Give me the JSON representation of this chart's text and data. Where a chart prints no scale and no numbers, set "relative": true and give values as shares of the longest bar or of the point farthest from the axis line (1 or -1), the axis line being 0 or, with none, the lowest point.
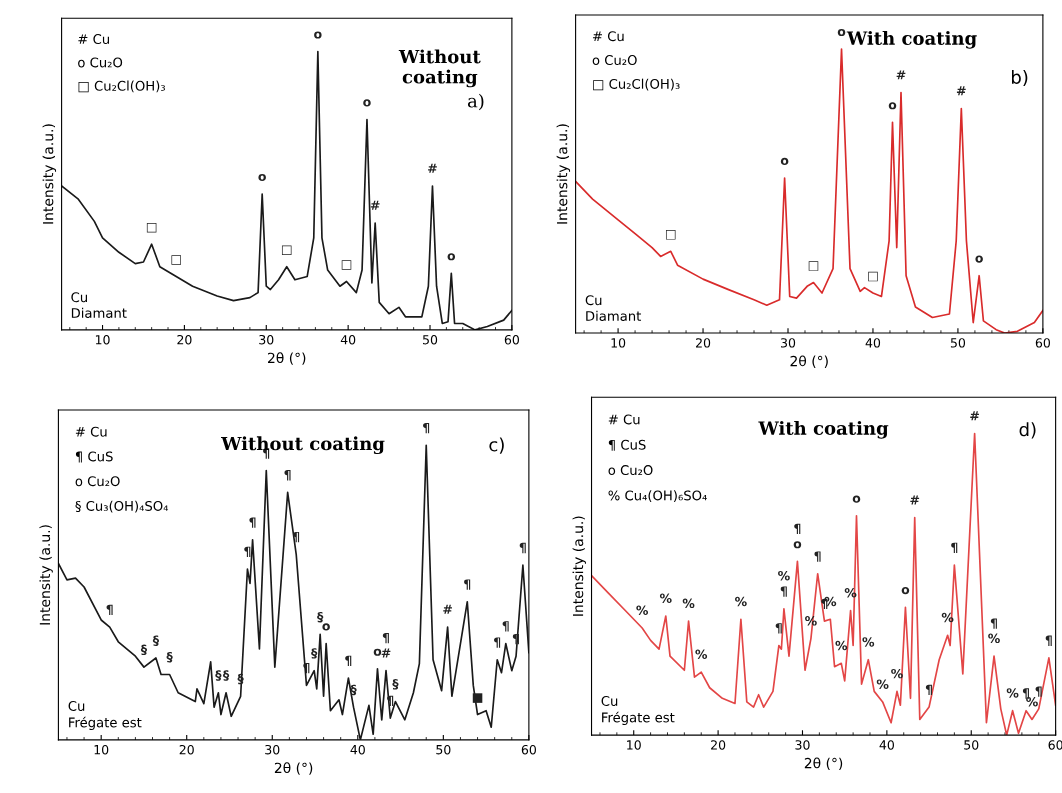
{
  "chart_data": [
    {
      "type": "line",
      "title": "Without\ncoating",
      "xlabel": "2θ (°)",
      "ylabel": "Intensity (a.u.)",
      "relative": true,
      "xlim": [
        5,
        60
      ],
      "xticks": [
        10,
        20,
        30,
        40,
        50,
        60
      ],
      "grid": false,
      "marker": "none",
      "line_style": "solid",
      "series": [
        {
          "color": "#1a1a1a",
          "x": [
            5,
            7,
            9,
            10,
            12,
            14,
            15,
            16,
            17,
            19,
            21,
            22,
            24,
            26,
            28,
            29,
            29.5,
            30,
            30.5,
            31.5,
            32.5,
            33.5,
            35,
            35.8,
            36.3,
            36.8,
            37.5,
            39,
            39.8,
            41,
            41.7,
            42.3,
            42.9,
            43.3,
            43.8,
            45,
            46.2,
            47,
            49,
            49.8,
            50.3,
            50.8,
            51.5,
            52.2,
            52.6,
            53,
            54,
            55.5,
            57,
            59,
            60
          ],
          "values": [
            0.517,
            0.471,
            0.39,
            0.331,
            0.279,
            0.238,
            0.244,
            0.308,
            0.227,
            0.192,
            0.157,
            0.145,
            0.122,
            0.105,
            0.116,
            0.134,
            0.488,
            0.157,
            0.145,
            0.18,
            0.227,
            0.18,
            0.192,
            0.331,
            1.0,
            0.331,
            0.215,
            0.157,
            0.174,
            0.134,
            0.215,
            0.756,
            0.169,
            0.384,
            0.099,
            0.058,
            0.081,
            0.047,
            0.047,
            0.157,
            0.517,
            0.157,
            0.023,
            0.029,
            0.203,
            0.023,
            0.023,
            0,
            0.012,
            0.035,
            0.07
          ]
        }
      ],
      "annotations": [
        "# Cu",
        "o Cu₂O",
        "□ Cu₂Cl(OH)₃",
        "Cu\nDiamant",
        "a)",
        {
          "text": "□",
          "x": 16,
          "y": 0.308
        },
        {
          "text": "□",
          "x": 19,
          "y": 0.192
        },
        {
          "text": "o",
          "x": 29.5,
          "y": 0.488
        },
        {
          "text": "□",
          "x": 32.5,
          "y": 0.227
        },
        {
          "text": "o",
          "x": 36.3,
          "y": 1.0
        },
        {
          "text": "□",
          "x": 39.8,
          "y": 0.174
        },
        {
          "text": "o",
          "x": 42.3,
          "y": 0.756
        },
        {
          "text": "#",
          "x": 43.3,
          "y": 0.384
        },
        {
          "text": "#",
          "x": 50.3,
          "y": 0.517
        },
        {
          "text": "o",
          "x": 52.6,
          "y": 0.203
        }
      ]
    },
    {
      "type": "line",
      "title": "With coating",
      "xlabel": "2θ (°)",
      "ylabel": "Intensity (a.u.)",
      "relative": true,
      "xlim": [
        5,
        60
      ],
      "xticks": [
        10,
        20,
        30,
        40,
        50,
        60
      ],
      "grid": false,
      "marker": "none",
      "line_style": "solid",
      "series": [
        {
          "color": "#d92b2b",
          "x": [
            5,
            7,
            10,
            12,
            14,
            15,
            16.2,
            17,
            20,
            23,
            26,
            27.5,
            29,
            29.6,
            30.2,
            31,
            32.3,
            33,
            34,
            35.3,
            36.3,
            37.3,
            38.5,
            39,
            40,
            41,
            41.9,
            42.3,
            42.8,
            43.3,
            43.9,
            45,
            47,
            49,
            49.8,
            50.4,
            51,
            51.8,
            52.5,
            53,
            54.5,
            55.5,
            57,
            59,
            60
          ],
          "values": [
            0.534,
            0.472,
            0.399,
            0.35,
            0.301,
            0.27,
            0.288,
            0.239,
            0.19,
            0.153,
            0.117,
            0.098,
            0.117,
            0.546,
            0.129,
            0.123,
            0.166,
            0.178,
            0.141,
            0.227,
            1.0,
            0.227,
            0.147,
            0.16,
            0.141,
            0.129,
            0.325,
            0.742,
            0.301,
            0.847,
            0.202,
            0.092,
            0.055,
            0.067,
            0.325,
            0.791,
            0.325,
            0.037,
            0.202,
            0.043,
            0.012,
            0,
            0.006,
            0.037,
            0.08
          ]
        }
      ],
      "annotations": [
        "# Cu",
        "o Cu₂O",
        "□ Cu₂Cl(OH)₃",
        "Cu\nDiamant",
        "b)",
        {
          "text": "□",
          "x": 16.2,
          "y": 0.288
        },
        {
          "text": "o",
          "x": 29.6,
          "y": 0.546
        },
        {
          "text": "□",
          "x": 33,
          "y": 0.178
        },
        {
          "text": "o",
          "x": 36.3,
          "y": 1.0
        },
        {
          "text": "□",
          "x": 40,
          "y": 0.141
        },
        {
          "text": "o",
          "x": 42.3,
          "y": 0.742
        },
        {
          "text": "#",
          "x": 43.3,
          "y": 0.847
        },
        {
          "text": "#",
          "x": 50.4,
          "y": 0.791
        },
        {
          "text": "o",
          "x": 52.5,
          "y": 0.202
        }
      ]
    },
    {
      "type": "line",
      "title": "Without coating",
      "xlabel": "2θ (°)",
      "ylabel": "Intensity (a.u.)",
      "relative": true,
      "xlim": [
        5,
        60
      ],
      "xticks": [
        10,
        20,
        30,
        40,
        50,
        60
      ],
      "grid": false,
      "marker": "none",
      "line_style": "solid",
      "series": [
        {
          "color": "#1a1a1a",
          "x": [
            5,
            6,
            7,
            8,
            10,
            11,
            12,
            14,
            15,
            16.4,
            17,
            18,
            19,
            21,
            21.2,
            22,
            22.8,
            23.2,
            23.7,
            24,
            24.6,
            25.2,
            26.3,
            27.1,
            27.4,
            27.7,
            28.5,
            29.3,
            30.3,
            31.8,
            32.8,
            34,
            34.9,
            35.2,
            35.6,
            36,
            36.3,
            36.8,
            37.8,
            38.2,
            38.9,
            39.5,
            40.3,
            41.3,
            41.8,
            42.3,
            42.8,
            43.3,
            43.8,
            44.4,
            45.5,
            46.5,
            47.2,
            48,
            48.8,
            49.8,
            50.5,
            51,
            52.8,
            53.5,
            54,
            55,
            55.6,
            56.3,
            56.8,
            57.3,
            58,
            58.5,
            59.3,
            60
          ],
          "values": [
            0.599,
            0.543,
            0.549,
            0.519,
            0.407,
            0.383,
            0.333,
            0.284,
            0.247,
            0.278,
            0.222,
            0.222,
            0.16,
            0.13,
            0.173,
            0.123,
            0.265,
            0.111,
            0.16,
            0.086,
            0.16,
            0.08,
            0.148,
            0.58,
            0.531,
            0.679,
            0.309,
            0.914,
            0.247,
            0.84,
            0.63,
            0.185,
            0.235,
            0.173,
            0.358,
            0.148,
            0.327,
            0.099,
            0.136,
            0.086,
            0.21,
            0.111,
            0,
            0.117,
            0.019,
            0.241,
            0.068,
            0.235,
            0.074,
            0.13,
            0.068,
            0.16,
            0.259,
            1.0,
            0.272,
            0.167,
            0.383,
            0.148,
            0.469,
            0.185,
            0.086,
            0.099,
            0.043,
            0.272,
            0.228,
            0.327,
            0.235,
            0.284,
            0.593,
            0.296
          ]
        }
      ],
      "annotations": [
        "# Cu",
        "¶ CuS",
        "o Cu₂O",
        "§ Cu₃(OH)₄SO₄",
        "Cu\nFrégate est",
        "c)",
        {
          "text": "¶",
          "x": 11,
          "y": 0.383
        },
        {
          "text": "§",
          "x": 15,
          "y": 0.247
        },
        {
          "text": "§",
          "x": 16.4,
          "y": 0.278
        },
        {
          "text": "§",
          "x": 18,
          "y": 0.222
        },
        {
          "text": "§",
          "x": 23.7,
          "y": 0.16
        },
        {
          "text": "§",
          "x": 24.6,
          "y": 0.16
        },
        {
          "text": "§",
          "x": 26.3,
          "y": 0.148
        },
        {
          "text": "¶",
          "x": 27.1,
          "y": 0.58
        },
        {
          "text": "¶",
          "x": 27.7,
          "y": 0.679
        },
        {
          "text": "¶",
          "x": 29.3,
          "y": 0.914
        },
        {
          "text": "¶",
          "x": 31.8,
          "y": 0.84
        },
        {
          "text": "¶",
          "x": 32.8,
          "y": 0.63
        },
        {
          "text": "§",
          "x": 34.9,
          "y": 0.235
        },
        {
          "text": "§",
          "x": 35.6,
          "y": 0.358
        },
        {
          "text": "¶",
          "x": 34,
          "y": 0.185
        },
        {
          "text": "o",
          "x": 36.3,
          "y": 0.327
        },
        {
          "text": "¶",
          "x": 38.9,
          "y": 0.21
        },
        {
          "text": "§",
          "x": 39.5,
          "y": 0.111
        },
        {
          "text": "o",
          "x": 42.3,
          "y": 0.241
        },
        {
          "text": "#",
          "x": 43.3,
          "y": 0.235
        },
        {
          "text": "§",
          "x": 44.4,
          "y": 0.13
        },
        {
          "text": "¶",
          "x": 43.3,
          "y": 0.235
        },
        {
          "text": "¶",
          "x": 43.8,
          "y": 0.074
        },
        {
          "text": "¶",
          "x": 48,
          "y": 1.0
        },
        {
          "text": "#",
          "x": 50.5,
          "y": 0.383
        },
        {
          "text": "¶",
          "x": 52.8,
          "y": 0.469
        },
        {
          "text": "■",
          "x": 54,
          "y": 0.086
        },
        {
          "text": "¶",
          "x": 56.3,
          "y": 0.272
        },
        {
          "text": "¶",
          "x": 57.3,
          "y": 0.327
        },
        {
          "text": "¶",
          "x": 58.5,
          "y": 0.284
        },
        {
          "text": "¶",
          "x": 59.3,
          "y": 0.593
        }
      ]
    },
    {
      "type": "line",
      "title": "With coating",
      "xlabel": "2θ (°)",
      "ylabel": "Intensity (a.u.)",
      "relative": true,
      "xlim": [
        5,
        60
      ],
      "xticks": [
        10,
        20,
        30,
        40,
        50,
        60
      ],
      "grid": false,
      "marker": "none",
      "line_style": "solid",
      "series": [
        {
          "color": "#e34646",
          "x": [
            5,
            7,
            9,
            11,
            12,
            13,
            13.8,
            14.3,
            16,
            16.5,
            17.2,
            18,
            19,
            20.5,
            22,
            22.7,
            23.4,
            24.2,
            24.8,
            25.4,
            26.5,
            27.2,
            27.5,
            27.8,
            28.4,
            29.4,
            30.3,
            31,
            31.8,
            32.6,
            33.3,
            33.8,
            34.6,
            35,
            35.7,
            36,
            36.4,
            37,
            37.8,
            38.5,
            39.5,
            40.5,
            41.2,
            41.6,
            42.2,
            42.8,
            43.3,
            43.9,
            45,
            46.2,
            47.2,
            47.5,
            48,
            49,
            50.4,
            51.8,
            52.7,
            53.5,
            54.2,
            54.9,
            55.6,
            56.5,
            57.2,
            58,
            59.2,
            60
          ],
          "values": [
            0.529,
            0.471,
            0.413,
            0.355,
            0.314,
            0.285,
            0.395,
            0.262,
            0.215,
            0.378,
            0.192,
            0.209,
            0.157,
            0.122,
            0.105,
            0.384,
            0.11,
            0.093,
            0.134,
            0.093,
            0.145,
            0.297,
            0.285,
            0.419,
            0.262,
            0.576,
            0.215,
            0.32,
            0.535,
            0.378,
            0.384,
            0.227,
            0.238,
            0.18,
            0.413,
            0.297,
            0.727,
            0.169,
            0.25,
            0.145,
            0.11,
            0.041,
            0.145,
            0.099,
            0.424,
            0.122,
            0.721,
            0.052,
            0.093,
            0.25,
            0.331,
            0.297,
            0.564,
            0.203,
            1.0,
            0.041,
            0.262,
            0.087,
            0,
            0.081,
            0.006,
            0.081,
            0.052,
            0.087,
            0.256,
            0.099
          ]
        }
      ],
      "annotations": [
        "# Cu",
        "¶ CuS",
        "o Cu₂O",
        "% Cu₄(OH)₆SO₄",
        "Cu\nFrégate est",
        "d)",
        {
          "text": "%",
          "x": 11,
          "y": 0.355
        },
        {
          "text": "%",
          "x": 13.8,
          "y": 0.395
        },
        {
          "text": "%",
          "x": 16.5,
          "y": 0.378
        },
        {
          "text": "%",
          "x": 18,
          "y": 0.209
        },
        {
          "text": "%",
          "x": 22.7,
          "y": 0.384
        },
        {
          "text": "¶",
          "x": 27.2,
          "y": 0.297
        },
        {
          "text": "¶",
          "x": 27.8,
          "y": 0.419
        },
        {
          "text": "%",
          "x": 27.8,
          "y": 0.419
        },
        {
          "text": "o",
          "x": 29.4,
          "y": 0.576
        },
        {
          "text": "¶",
          "x": 29.4,
          "y": 0.576
        },
        {
          "text": "%",
          "x": 31,
          "y": 0.32
        },
        {
          "text": "¶",
          "x": 31.8,
          "y": 0.535
        },
        {
          "text": "¶",
          "x": 32.6,
          "y": 0.378
        },
        {
          "text": "%",
          "x": 33.3,
          "y": 0.384
        },
        {
          "text": "%",
          "x": 34.6,
          "y": 0.238
        },
        {
          "text": "%",
          "x": 35.7,
          "y": 0.413
        },
        {
          "text": "o",
          "x": 36.4,
          "y": 0.727
        },
        {
          "text": "%",
          "x": 37.8,
          "y": 0.25
        },
        {
          "text": "%",
          "x": 39.5,
          "y": 0.11
        },
        {
          "text": "%",
          "x": 41.2,
          "y": 0.145
        },
        {
          "text": "o",
          "x": 42.2,
          "y": 0.424
        },
        {
          "text": "#",
          "x": 43.3,
          "y": 0.721
        },
        {
          "text": "¶",
          "x": 45,
          "y": 0.093
        },
        {
          "text": "%",
          "x": 47.2,
          "y": 0.331
        },
        {
          "text": "¶",
          "x": 48,
          "y": 0.564
        },
        {
          "text": "#",
          "x": 50.4,
          "y": 1.0
        },
        {
          "text": "%",
          "x": 52.7,
          "y": 0.262
        },
        {
          "text": "¶",
          "x": 52.7,
          "y": 0.262
        },
        {
          "text": "%",
          "x": 54.9,
          "y": 0.081
        },
        {
          "text": "¶",
          "x": 56.5,
          "y": 0.081
        },
        {
          "text": "¶",
          "x": 58,
          "y": 0.087
        },
        {
          "text": "%",
          "x": 57.2,
          "y": 0.052
        },
        {
          "text": "¶",
          "x": 59.2,
          "y": 0.256
        }
      ]
    }
  ]
}
